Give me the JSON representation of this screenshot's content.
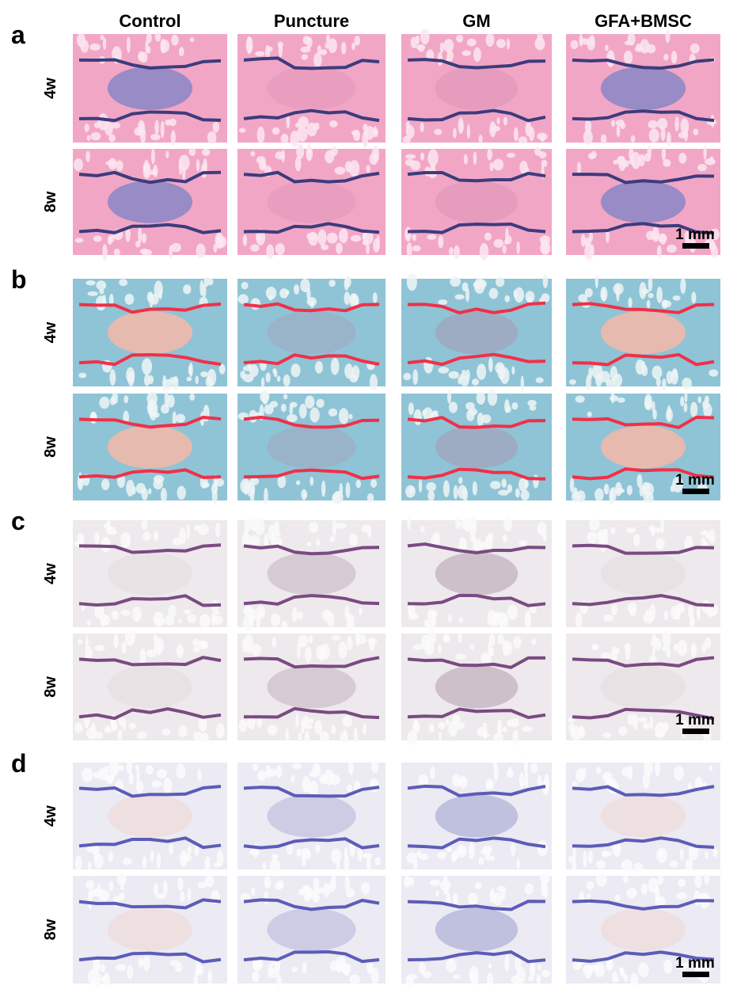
{
  "columns": [
    "Control",
    "Puncture",
    "GM",
    "GFA+BMSC"
  ],
  "panels": [
    {
      "label": "a",
      "rows": [
        "4w",
        "8w"
      ],
      "scale_bar": "1 mm"
    },
    {
      "label": "b",
      "rows": [
        "4w",
        "8w"
      ],
      "scale_bar": "1 mm"
    },
    {
      "label": "c",
      "rows": [
        "4w",
        "8w"
      ],
      "scale_bar": "1 mm"
    },
    {
      "label": "d",
      "rows": [
        "4w",
        "8w"
      ],
      "scale_bar": "1 mm"
    }
  ]
}
